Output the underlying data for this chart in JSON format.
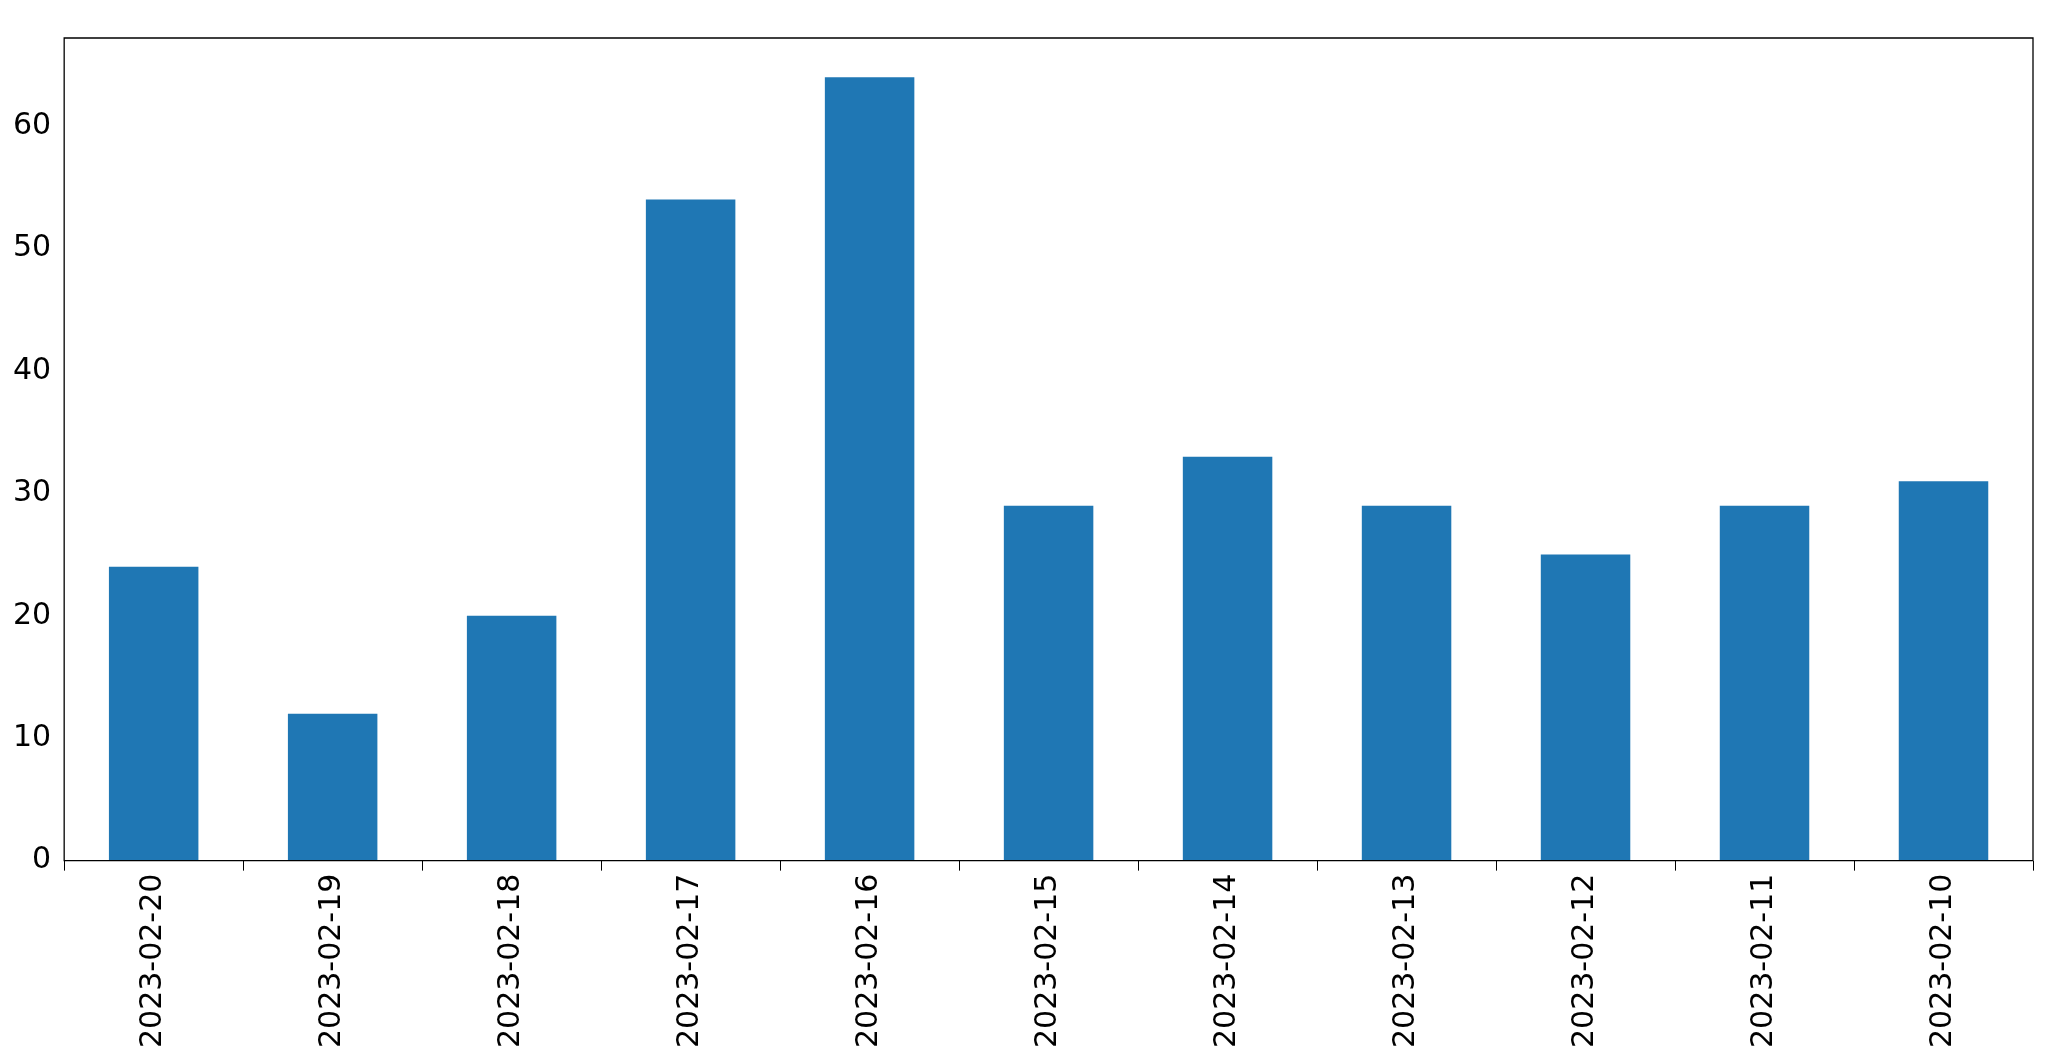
{
  "chart_data": {
    "type": "bar",
    "categories": [
      "2023-02-20",
      "2023-02-19",
      "2023-02-18",
      "2023-02-17",
      "2023-02-16",
      "2023-02-15",
      "2023-02-14",
      "2023-02-13",
      "2023-02-12",
      "2023-02-11",
      "2023-02-10"
    ],
    "values": [
      24,
      12,
      20,
      54,
      64,
      29,
      33,
      29,
      25,
      29,
      31
    ],
    "color": "#1f77b4",
    "ylim": [
      0,
      67.2
    ],
    "yticks": [
      0,
      10,
      20,
      30,
      40,
      50,
      60
    ],
    "legend": false
  }
}
